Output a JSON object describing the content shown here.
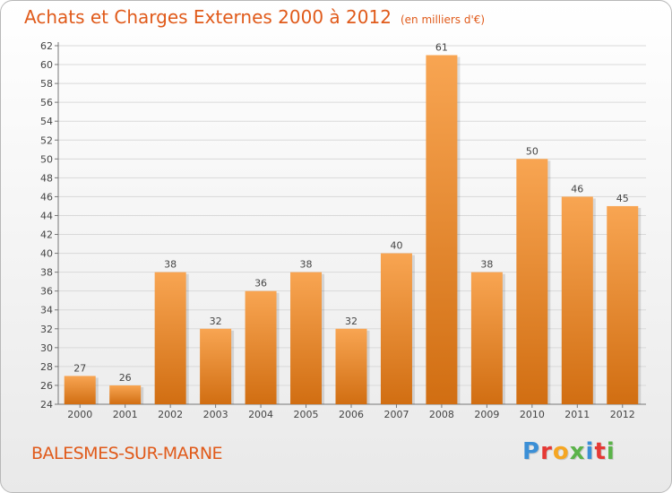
{
  "title": "Achats et Charges Externes 2000 à 2012",
  "subtitle": "(en milliers d'€)",
  "commune": "BALESMES-SUR-MARNE",
  "brand": {
    "text": "Proxiti",
    "letter_colors": [
      "#3b8fd6",
      "#e53935",
      "#f5a623",
      "#5bb34a",
      "#3b8fd6",
      "#e53935",
      "#5bb34a"
    ]
  },
  "colors": {
    "title": "#e05a1a",
    "bar_light": "#f8a552",
    "bar_dark": "#d16e12",
    "grid": "#d9d9d9"
  },
  "chart_data": {
    "type": "bar",
    "categories": [
      "2000",
      "2001",
      "2002",
      "2003",
      "2004",
      "2005",
      "2006",
      "2007",
      "2008",
      "2009",
      "2010",
      "2011",
      "2012"
    ],
    "values": [
      27,
      26,
      38,
      32,
      36,
      38,
      32,
      40,
      61,
      38,
      50,
      46,
      45
    ],
    "data_labels": [
      "27",
      "26",
      "38",
      "32",
      "36",
      "38",
      "32",
      "40",
      "61",
      "38",
      "50",
      "46",
      "45"
    ],
    "ylim": [
      24,
      62
    ],
    "yticks": [
      24,
      26,
      28,
      30,
      32,
      34,
      36,
      38,
      40,
      42,
      44,
      46,
      48,
      50,
      52,
      54,
      56,
      58,
      60,
      62
    ],
    "grid": true,
    "legend": "none"
  }
}
